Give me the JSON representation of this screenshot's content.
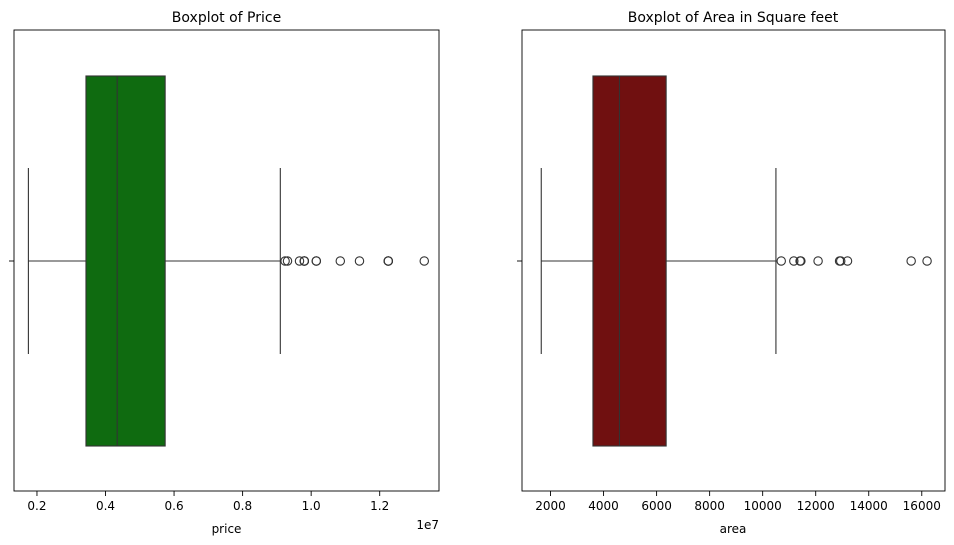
{
  "chart_data": [
    {
      "type": "boxplot",
      "title": "Boxplot of Price",
      "xlabel": "price",
      "ylabel": "",
      "offset_text": "1e7",
      "xlim": [
        0.133,
        1.373
      ],
      "xticks": [
        0.2,
        0.4,
        0.6,
        0.8,
        1.0,
        1.2
      ],
      "xtick_labels": [
        "0.2",
        "0.4",
        "0.6",
        "0.8",
        "1.0",
        "1.2"
      ],
      "color": "#0f6b10",
      "box": {
        "whisker_low": 0.175,
        "q1": 0.343,
        "median": 0.434,
        "q3": 0.574,
        "whisker_high": 0.91
      },
      "outliers": [
        0.924,
        0.931,
        0.966,
        0.98,
        0.98,
        0.98,
        1.015,
        1.015,
        1.085,
        1.141,
        1.225,
        1.225,
        1.225,
        1.33
      ],
      "grid": false
    },
    {
      "type": "boxplot",
      "title": "Boxplot of Area in Square feet",
      "xlabel": "area",
      "ylabel": "",
      "xlim": [
        924,
        16876
      ],
      "xticks": [
        2000,
        4000,
        6000,
        8000,
        10000,
        12000,
        14000,
        16000
      ],
      "xtick_labels": [
        "2000",
        "4000",
        "6000",
        "8000",
        "10000",
        "12000",
        "14000",
        "16000"
      ],
      "color": "#701010",
      "box": {
        "whisker_low": 1650,
        "q1": 3600,
        "median": 4600,
        "q3": 6360,
        "whisker_high": 10500
      },
      "outliers": [
        10700,
        11175,
        11410,
        11440,
        12090,
        12900,
        12944,
        13200,
        15600,
        16200
      ],
      "grid": false
    }
  ]
}
